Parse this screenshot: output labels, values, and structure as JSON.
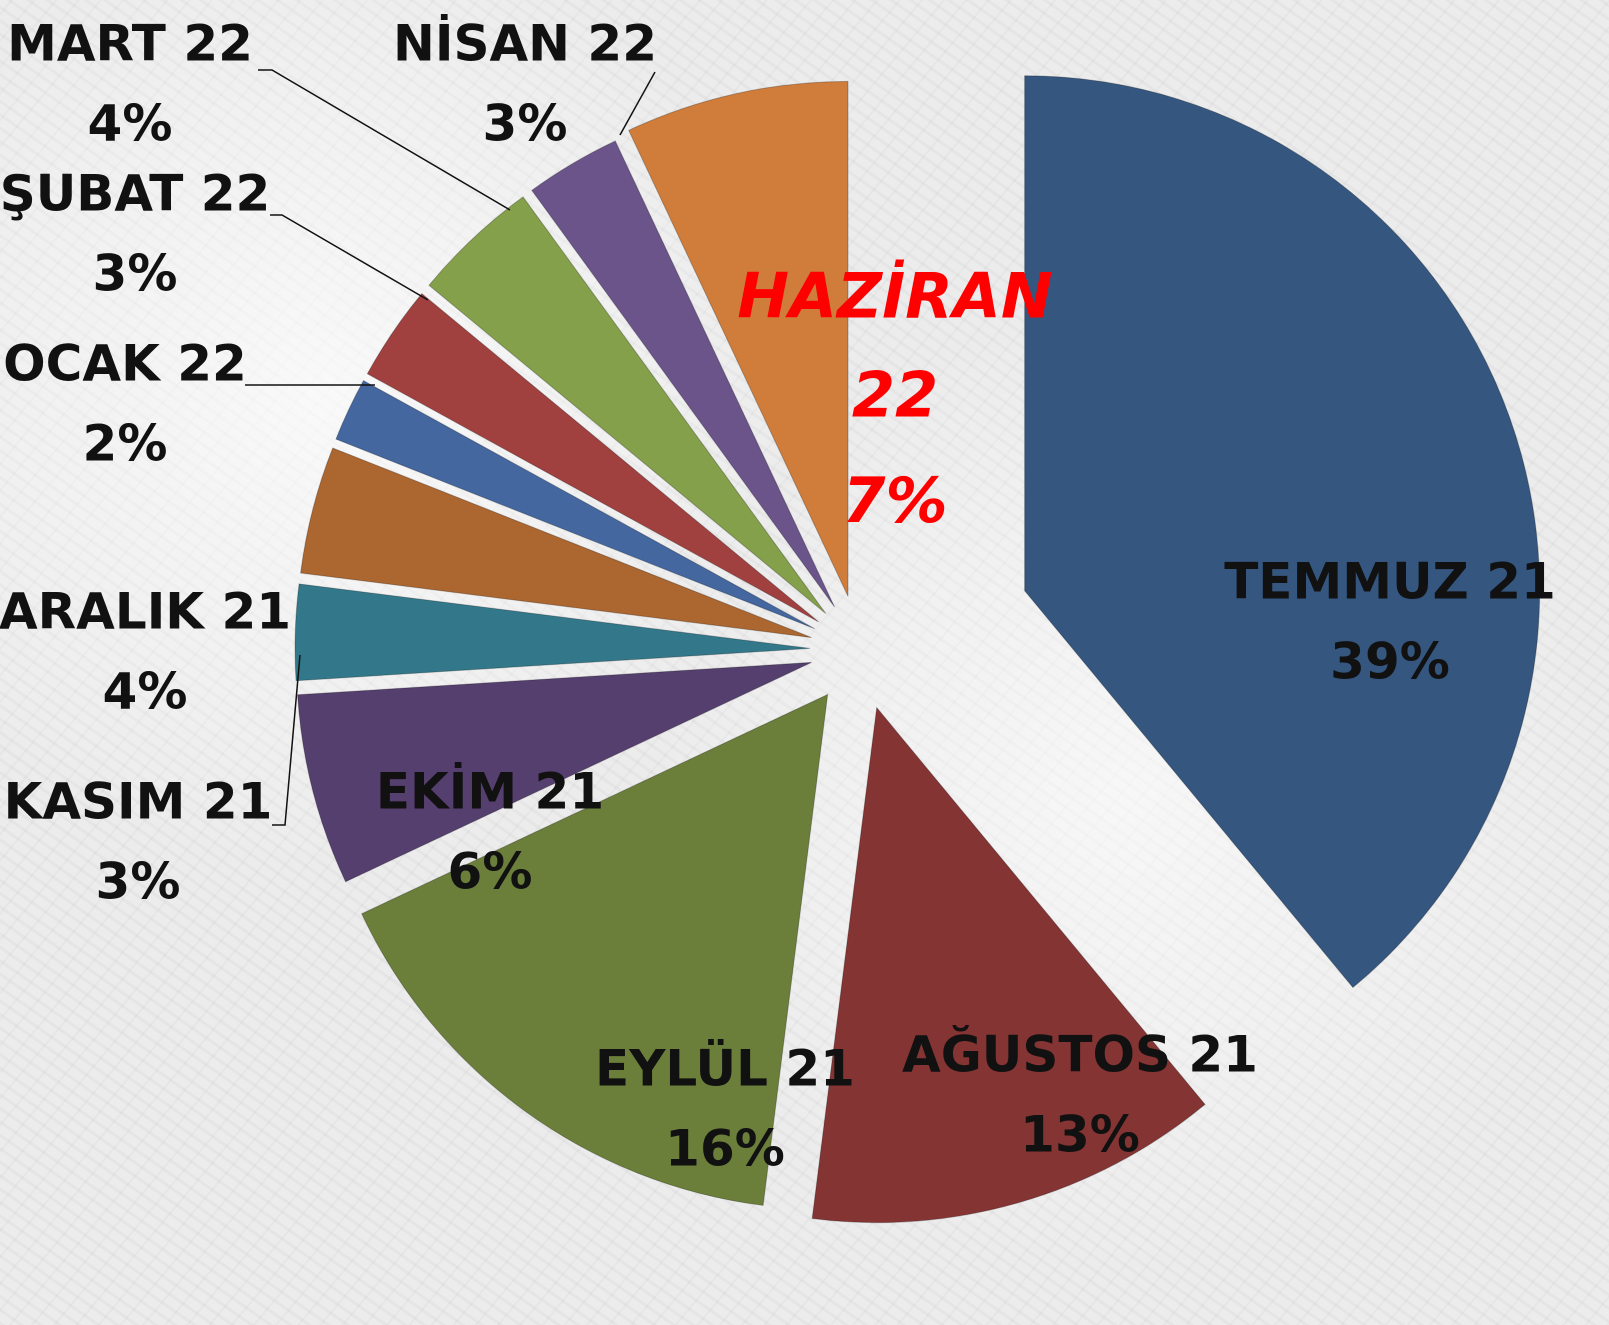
{
  "chart_data": {
    "type": "pie",
    "categories": [
      "TEMMUZ 21",
      "AĞUSTOS 21",
      "EYLÜL 21",
      "EKİM 21",
      "KASIM 21",
      "ARALIK 21",
      "OCAK 22",
      "ŞUBAT 22",
      "MART 22",
      "NİSAN 22",
      "HAZİRAN 22"
    ],
    "values": [
      39,
      13,
      16,
      6,
      3,
      4,
      2,
      3,
      4,
      3,
      7
    ],
    "value_labels": [
      "39%",
      "13%",
      "16%",
      "6%",
      "3%",
      "4%",
      "2%",
      "3%",
      "4%",
      "3%",
      "7%"
    ],
    "colors": [
      "#34567f",
      "#843433",
      "#6b7f3b",
      "#553f6e",
      "#33788a",
      "#ac6630",
      "#4467a0",
      "#a04140",
      "#84a04a",
      "#6b548a",
      "#d07d3c"
    ]
  }
}
